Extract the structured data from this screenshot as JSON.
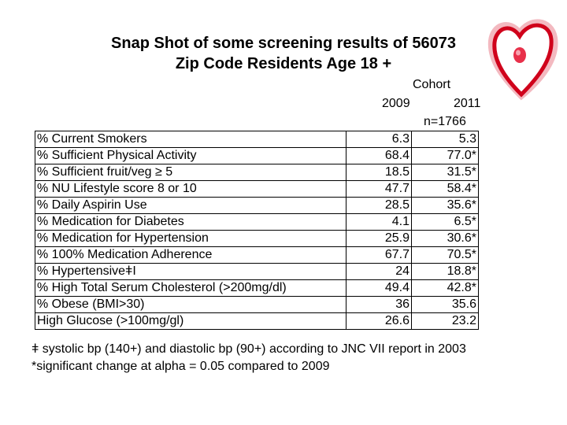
{
  "title": {
    "line1": "Snap Shot of some screening results of 56073",
    "line2": "Zip Code Residents Age 18 +"
  },
  "header": {
    "cohort": "Cohort",
    "year1": "2009",
    "year2": "2011",
    "n": "n=1766"
  },
  "rows": [
    {
      "label": "% Current Smokers",
      "v2009": "6.3",
      "v2011": "5.3"
    },
    {
      "label": "% Sufficient Physical Activity",
      "v2009": "68.4",
      "v2011": "77.0*"
    },
    {
      "label": "% Sufficient fruit/veg ≥ 5",
      "v2009": "18.5",
      "v2011": "31.5*"
    },
    {
      "label": "% NU Lifestyle score 8 or 10",
      "v2009": "47.7",
      "v2011": "58.4*"
    },
    {
      "label": "% Daily Aspirin Use",
      "v2009": "28.5",
      "v2011": "35.6*"
    },
    {
      "label": "% Medication for Diabetes",
      "v2009": "4.1",
      "v2011": "6.5*"
    },
    {
      "label": "% Medication for Hypertension",
      "v2009": "25.9",
      "v2011": "30.6*"
    },
    {
      "label": "% 100% Medication Adherence",
      "v2009": "67.7",
      "v2011": "70.5*"
    },
    {
      "label": "% HypertensiveǂI",
      "v2009": "24",
      "v2011": "18.8*"
    },
    {
      "label": "% High Total Serum Cholesterol (>200mg/dl)",
      "v2009": "49.4",
      "v2011": "42.8*"
    },
    {
      "label": "% Obese (BMI>30)",
      "v2009": "36",
      "v2011": "35.6"
    },
    {
      "label": "High Glucose (>100mg/gl)",
      "v2009": "26.6",
      "v2011": "23.2"
    }
  ],
  "footnotes": {
    "line1": "ǂ systolic bp (140+) and diastolic bp (90+) according to JNC VII report in 2003",
    "line2": "*significant change at alpha = 0.05 compared to 2009"
  },
  "colors": {
    "heart_red": "#d0021b",
    "heart_pink": "#f3b9c0",
    "dot_red": "#e8304a"
  }
}
